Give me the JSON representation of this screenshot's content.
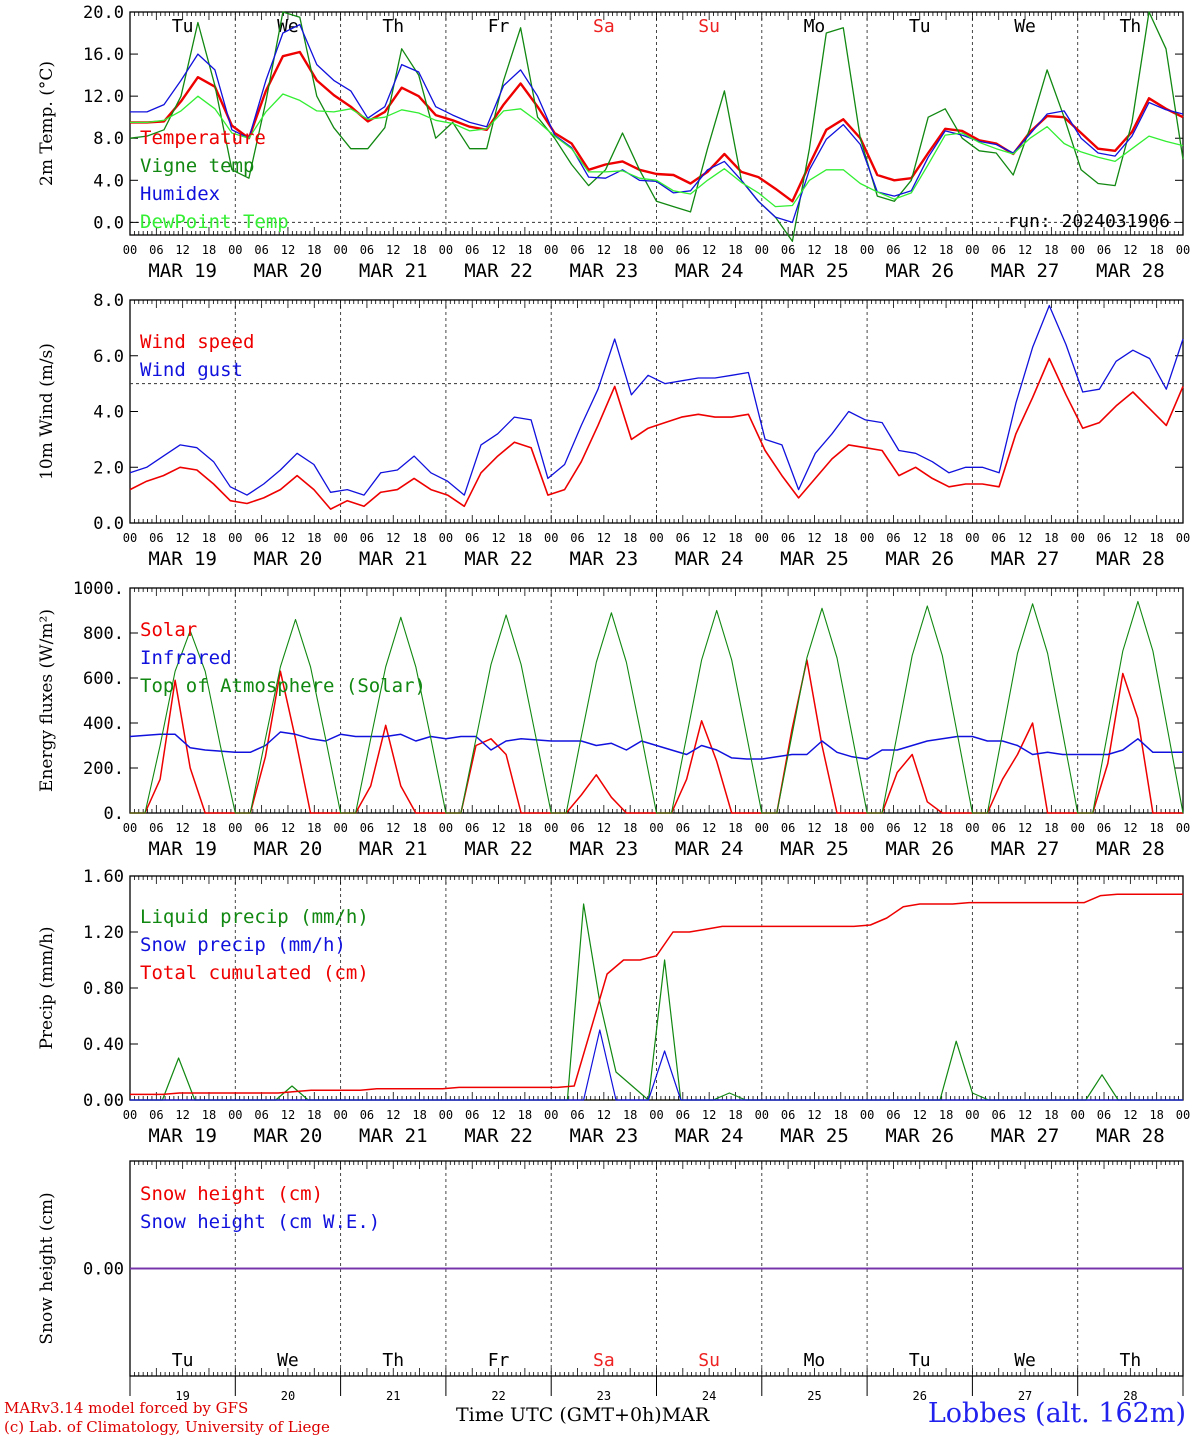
{
  "chart_data": {
    "type": "line",
    "days": [
      "MAR 19",
      "MAR 20",
      "MAR 21",
      "MAR 22",
      "MAR 23",
      "MAR 24",
      "MAR 25",
      "MAR 26",
      "MAR 27",
      "MAR 28"
    ],
    "weekdays": [
      "Tu",
      "We",
      "Th",
      "Fr",
      "Sa",
      "Su",
      "Mo",
      "Tu",
      "We",
      "Th"
    ],
    "day_numbers": [
      "19",
      "20",
      "21",
      "22",
      "23",
      "24",
      "25",
      "26",
      "27",
      "28"
    ],
    "hour_ticks": [
      "00",
      "06",
      "12",
      "18"
    ],
    "hour_end": "00",
    "weekend_color": "#ee2222",
    "time_step_hours": 3,
    "panels": [
      {
        "ylabel": "2m Temp. (°C)",
        "ylim": [
          -1.2,
          20
        ],
        "yticks": [
          "0.0",
          "4.0",
          "8.0",
          "12.0",
          "16.0",
          "20.0"
        ],
        "ref_line": 0,
        "show_weekdays_top": true,
        "run_label": "run: 2024031906",
        "series": [
          {
            "name": "Temperature",
            "color": "#ee0000",
            "width": 2.4,
            "values": [
              9.5,
              9.5,
              9.6,
              11.5,
              13.8,
              12.9,
              9.2,
              8.0,
              12.5,
              15.8,
              16.2,
              13.5,
              12.1,
              11.0,
              9.6,
              10.5,
              12.8,
              12.0,
              10.2,
              9.7,
              9.1,
              8.8,
              11.2,
              13.2,
              11.0,
              8.5,
              7.5,
              5.0,
              5.5,
              5.8,
              5.0,
              4.6,
              4.5,
              3.7,
              4.8,
              6.5,
              4.8,
              4.3,
              3.2,
              2.0,
              5.5,
              8.8,
              9.8,
              8.0,
              4.5,
              4.0,
              4.2,
              6.6,
              8.9,
              8.7,
              7.8,
              7.5,
              6.5,
              8.6,
              10.1,
              10.0,
              8.5,
              7.0,
              6.8,
              8.6,
              11.8,
              10.8,
              10.0
            ]
          },
          {
            "name": "Vigne temp",
            "color": "#118811",
            "width": 1.3,
            "values": [
              8.0,
              8.2,
              8.8,
              12.0,
              19.0,
              13.0,
              5.0,
              4.2,
              11.5,
              20.0,
              19.5,
              12.0,
              9.0,
              7.0,
              7.0,
              9.0,
              16.5,
              14.0,
              8.0,
              9.5,
              7.0,
              7.0,
              13.5,
              18.5,
              10.0,
              8.0,
              5.5,
              3.5,
              5.0,
              8.5,
              5.0,
              2.0,
              1.5,
              1.0,
              7.0,
              12.5,
              4.0,
              2.0,
              0.5,
              -1.8,
              7.0,
              18.0,
              18.5,
              8.0,
              2.5,
              2.0,
              4.0,
              10.0,
              10.8,
              8.0,
              6.8,
              6.6,
              4.5,
              9.0,
              14.5,
              10.0,
              5.0,
              3.7,
              3.5,
              9.5,
              20.0,
              16.5,
              6.0
            ]
          },
          {
            "name": "Humidex",
            "color": "#1111dd",
            "width": 1.3,
            "values": [
              10.5,
              10.5,
              11.2,
              13.5,
              16.0,
              14.5,
              8.8,
              8.0,
              13.5,
              18.0,
              18.8,
              15.0,
              13.5,
              12.5,
              9.9,
              11.0,
              15.0,
              14.3,
              11.0,
              10.2,
              9.5,
              9.1,
              13.0,
              14.5,
              12.0,
              8.3,
              7.1,
              4.3,
              4.2,
              5.0,
              4.0,
              3.9,
              2.8,
              3.0,
              5.0,
              5.8,
              4.0,
              2.0,
              0.5,
              0.0,
              5.0,
              7.9,
              9.3,
              7.4,
              2.9,
              2.5,
              3.0,
              6.2,
              8.7,
              8.3,
              7.7,
              7.4,
              6.6,
              8.4,
              10.3,
              10.6,
              8.0,
              6.6,
              6.3,
              8.2,
              11.4,
              10.7,
              10.3
            ]
          },
          {
            "name": "DewPoint Temp",
            "color": "#33ee33",
            "width": 1.3,
            "values": [
              9.5,
              9.5,
              9.7,
              10.6,
              12.0,
              10.8,
              8.5,
              8.0,
              10.5,
              12.2,
              11.6,
              10.6,
              10.5,
              10.8,
              9.8,
              10.0,
              10.7,
              10.4,
              9.7,
              9.4,
              8.7,
              8.9,
              10.6,
              10.8,
              9.6,
              8.2,
              7.0,
              4.8,
              4.8,
              4.9,
              4.2,
              4.0,
              3.0,
              2.7,
              4.0,
              5.1,
              3.8,
              2.8,
              1.5,
              1.6,
              4.0,
              5.0,
              5.0,
              3.7,
              2.9,
              2.2,
              2.8,
              5.5,
              8.3,
              8.5,
              7.6,
              7.0,
              6.5,
              8.0,
              9.1,
              7.5,
              6.7,
              6.2,
              5.8,
              7.0,
              8.2,
              7.7,
              7.3
            ]
          }
        ]
      },
      {
        "ylabel": "10m Wind (m/s)",
        "ylim": [
          0,
          8
        ],
        "yticks": [
          "0.0",
          "2.0",
          "4.0",
          "6.0",
          "8.0"
        ],
        "ref_line": 5,
        "series": [
          {
            "name": "Wind speed",
            "color": "#ee0000",
            "width": 1.6,
            "values": [
              1.2,
              1.5,
              1.7,
              2.0,
              1.9,
              1.4,
              0.8,
              0.7,
              0.9,
              1.2,
              1.7,
              1.2,
              0.5,
              0.8,
              0.6,
              1.1,
              1.2,
              1.6,
              1.2,
              1.0,
              0.6,
              1.8,
              2.4,
              2.9,
              2.7,
              1.0,
              1.2,
              2.2,
              3.5,
              4.9,
              3.0,
              3.4,
              3.6,
              3.8,
              3.9,
              3.8,
              3.8,
              3.9,
              2.6,
              1.7,
              0.9,
              1.6,
              2.3,
              2.8,
              2.7,
              2.6,
              1.7,
              2.0,
              1.6,
              1.3,
              1.4,
              1.4,
              1.3,
              3.2,
              4.5,
              5.9,
              4.6,
              3.4,
              3.6,
              4.2,
              4.7,
              4.1,
              3.5,
              4.9
            ]
          },
          {
            "name": "Wind gust",
            "color": "#1111dd",
            "width": 1.3,
            "values": [
              1.8,
              2.0,
              2.4,
              2.8,
              2.7,
              2.2,
              1.3,
              1.0,
              1.4,
              1.9,
              2.5,
              2.1,
              1.1,
              1.2,
              1.0,
              1.8,
              1.9,
              2.4,
              1.8,
              1.5,
              1.0,
              2.8,
              3.2,
              3.8,
              3.7,
              1.6,
              2.1,
              3.5,
              4.8,
              6.6,
              4.6,
              5.3,
              5.0,
              5.1,
              5.2,
              5.2,
              5.3,
              5.4,
              3.0,
              2.8,
              1.2,
              2.5,
              3.2,
              4.0,
              3.7,
              3.6,
              2.6,
              2.5,
              2.2,
              1.8,
              2.0,
              2.0,
              1.8,
              4.3,
              6.3,
              7.8,
              6.4,
              4.7,
              4.8,
              5.8,
              6.2,
              5.9,
              4.8,
              6.6
            ]
          }
        ]
      },
      {
        "ylabel": "Energy fluxes (W/m²)",
        "ylim": [
          0,
          1000
        ],
        "yticks": [
          "0.",
          "200.",
          "400.",
          "600.",
          "800.",
          "1000."
        ],
        "series": [
          {
            "name": "Solar",
            "color": "#ee0000",
            "width": 1.5,
            "values": [
              0,
              0,
              150,
              590,
              200,
              0,
              0,
              0,
              0,
              250,
              630,
              330,
              0,
              0,
              0,
              0,
              120,
              390,
              120,
              0,
              0,
              0,
              0,
              300,
              330,
              260,
              0,
              0,
              0,
              0,
              80,
              170,
              70,
              0,
              0,
              0,
              0,
              150,
              410,
              230,
              0,
              0,
              0,
              0,
              370,
              680,
              300,
              0,
              0,
              0,
              0,
              180,
              260,
              50,
              0,
              0,
              0,
              0,
              150,
              260,
              400,
              0,
              0,
              0,
              0,
              220,
              620,
              420,
              0,
              0,
              0
            ]
          },
          {
            "name": "Infrared",
            "color": "#1111dd",
            "width": 1.5,
            "values": [
              340,
              345,
              350,
              350,
              290,
              280,
              275,
              270,
              270,
              300,
              360,
              350,
              330,
              320,
              350,
              340,
              340,
              340,
              350,
              320,
              340,
              330,
              340,
              340,
              280,
              320,
              330,
              325,
              320,
              320,
              320,
              300,
              310,
              280,
              320,
              300,
              280,
              260,
              300,
              280,
              245,
              240,
              240,
              250,
              260,
              260,
              320,
              270,
              250,
              240,
              280,
              280,
              300,
              320,
              330,
              340,
              340,
              320,
              320,
              300,
              260,
              270,
              260,
              260,
              260,
              260,
              280,
              330,
              270,
              270,
              270
            ]
          },
          {
            "name": "Top of Atmosphere (Solar)",
            "color": "#118811",
            "width": 1.1,
            "values": [
              0,
              0,
              300,
              630,
              810,
              630,
              300,
              0,
              0,
              330,
              650,
              860,
              650,
              330,
              0,
              0,
              330,
              650,
              870,
              650,
              330,
              0,
              0,
              330,
              660,
              880,
              660,
              330,
              0,
              0,
              340,
              670,
              890,
              670,
              340,
              0,
              0,
              340,
              680,
              900,
              680,
              340,
              0,
              0,
              345,
              690,
              910,
              690,
              345,
              0,
              0,
              350,
              700,
              920,
              700,
              350,
              0,
              0,
              355,
              710,
              930,
              710,
              355,
              0,
              0,
              360,
              720,
              940,
              720,
              360,
              0
            ]
          }
        ]
      },
      {
        "ylabel": "Precip (mm/h)",
        "ylim": [
          0,
          1.6
        ],
        "yticks": [
          "0.00",
          "0.40",
          "0.80",
          "1.20",
          "1.60"
        ],
        "series": [
          {
            "name": "Liquid precip (mm/h)",
            "color": "#118811",
            "width": 1.2,
            "values": [
              0,
              0,
              0,
              0.3,
              0,
              0,
              0,
              0,
              0,
              0,
              0.1,
              0,
              0,
              0,
              0,
              0,
              0,
              0,
              0,
              0,
              0,
              0,
              0,
              0,
              0,
              0,
              0,
              0,
              1.4,
              0.7,
              0.2,
              0.1,
              0,
              1.0,
              0,
              0,
              0,
              0.05,
              0,
              0,
              0,
              0,
              0,
              0,
              0,
              0,
              0,
              0,
              0,
              0,
              0,
              0.42,
              0.05,
              0,
              0,
              0,
              0,
              0,
              0,
              0,
              0.18,
              0,
              0,
              0,
              0,
              0
            ]
          },
          {
            "name": "Snow precip (mm/h)",
            "color": "#1111dd",
            "width": 1.2,
            "values": [
              0,
              0,
              0,
              0,
              0,
              0,
              0,
              0,
              0,
              0,
              0,
              0,
              0,
              0,
              0,
              0,
              0,
              0,
              0,
              0,
              0,
              0,
              0,
              0,
              0,
              0,
              0,
              0,
              0,
              0.5,
              0,
              0,
              0,
              0.35,
              0,
              0,
              0,
              0,
              0,
              0,
              0,
              0,
              0,
              0,
              0,
              0,
              0,
              0,
              0,
              0,
              0,
              0,
              0,
              0,
              0,
              0,
              0,
              0,
              0,
              0,
              0,
              0,
              0,
              0,
              0,
              0
            ]
          },
          {
            "name": "Total cumulated (cm)",
            "color": "#ee0000",
            "width": 1.5,
            "values": [
              0.04,
              0.04,
              0.04,
              0.05,
              0.05,
              0.05,
              0.05,
              0.05,
              0.05,
              0.05,
              0.06,
              0.07,
              0.07,
              0.07,
              0.07,
              0.08,
              0.08,
              0.08,
              0.08,
              0.08,
              0.09,
              0.09,
              0.09,
              0.09,
              0.09,
              0.09,
              0.09,
              0.1,
              0.5,
              0.9,
              1.0,
              1.0,
              1.03,
              1.2,
              1.2,
              1.22,
              1.24,
              1.24,
              1.24,
              1.24,
              1.24,
              1.24,
              1.24,
              1.24,
              1.24,
              1.25,
              1.3,
              1.38,
              1.4,
              1.4,
              1.4,
              1.41,
              1.41,
              1.41,
              1.41,
              1.41,
              1.41,
              1.41,
              1.41,
              1.46,
              1.47,
              1.47,
              1.47,
              1.47,
              1.47
            ]
          }
        ]
      },
      {
        "ylabel": "Snow height (cm)",
        "ylim": [
          -0.5,
          0.5
        ],
        "yticks": [
          "0.00"
        ],
        "show_weekdays_bottom": true,
        "series": [
          {
            "name": "Snow height (cm)",
            "color": "#ee0000",
            "width": 1.5,
            "values": [
              0,
              0
            ]
          },
          {
            "name": "Snow height (cm W.E.)",
            "color": "#1111dd",
            "width": 1.5,
            "values": [
              0,
              0
            ]
          },
          {
            "name": "",
            "color": "#7733aa",
            "width": 1.6,
            "values": [
              0,
              0
            ]
          }
        ]
      }
    ]
  },
  "footer": {
    "credit_line1": "MARv3.14 model forced by GFS",
    "credit_line2": "(c) Lab. of Climatology, University of Liege",
    "x_title": "Time UTC (GMT+0h)",
    "month": "MAR",
    "station": "Lobbes (alt. 162m)"
  }
}
